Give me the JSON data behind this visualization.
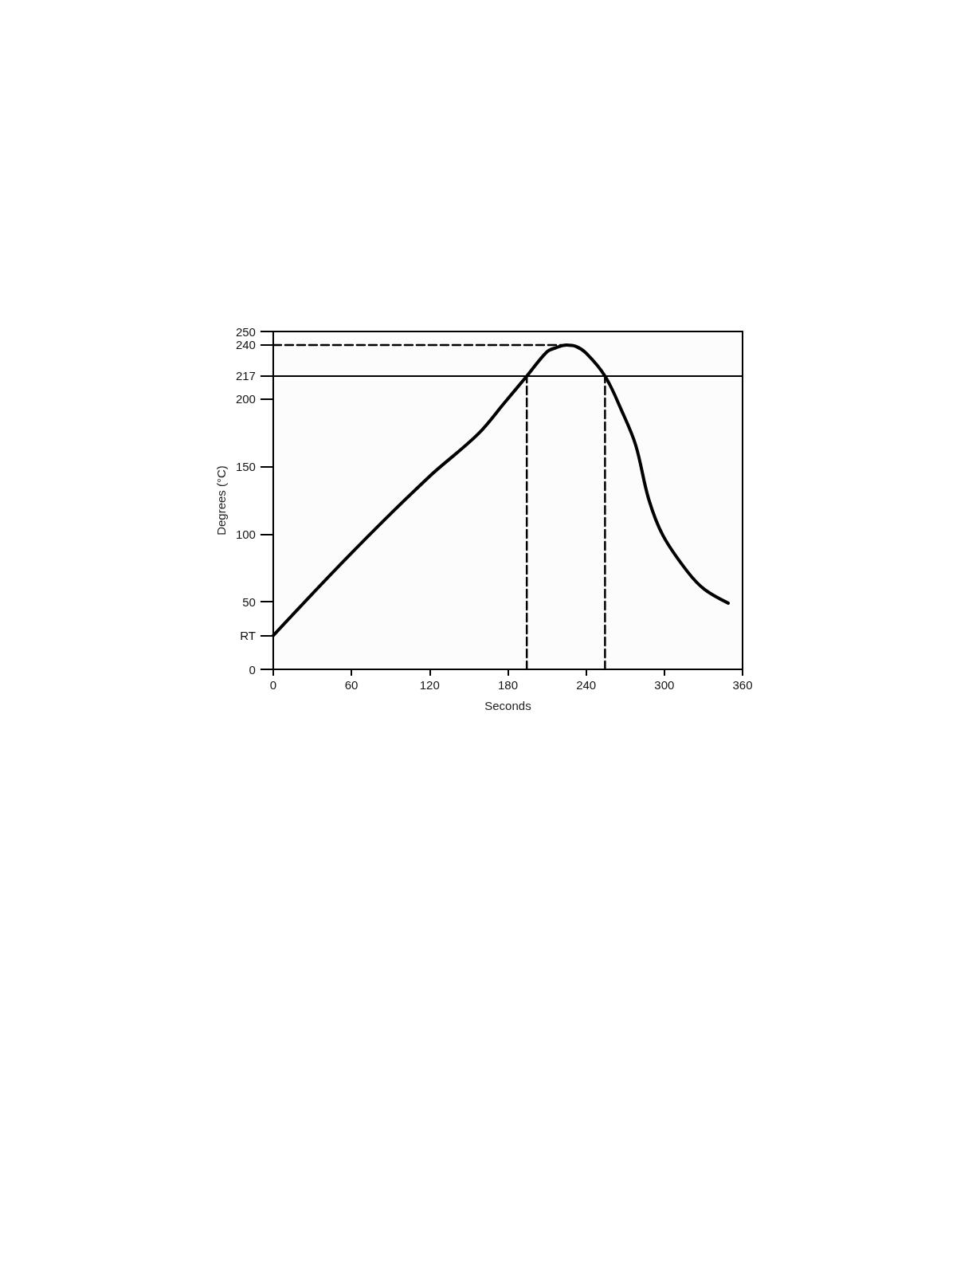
{
  "chart_data": {
    "type": "line",
    "xlabel": "Seconds",
    "ylabel": "Degrees (°C)",
    "xlim": [
      0,
      360
    ],
    "xticks": [
      0,
      60,
      120,
      180,
      240,
      300,
      360
    ],
    "ylim": [
      0,
      250
    ],
    "yticks": [
      0,
      {
        "value": 25,
        "label": "RT"
      },
      50,
      100,
      150,
      200,
      217,
      240,
      250
    ],
    "grid": false,
    "marker": "none",
    "series": [
      {
        "color": "#000000",
        "x": [
          0,
          60,
          119,
          157,
          178,
          194.5,
          210,
          217,
          225,
          232,
          240,
          254.5,
          267,
          278,
          288,
          299,
          318,
          331,
          349
        ],
        "values": [
          25,
          86,
          142,
          174,
          198,
          217,
          235,
          238,
          240,
          239,
          234,
          217,
          192,
          166,
          126,
          99,
          72,
          59,
          49
        ]
      },
      {
        "color": "#000000",
        "line_style": "dashed",
        "x": [
          0,
          225
        ],
        "values": [
          240,
          240
        ]
      },
      {
        "color": "#000000",
        "line_style": "dashed",
        "x": [
          194.5,
          194.5
        ],
        "values": [
          0,
          217
        ]
      },
      {
        "color": "#000000",
        "line_style": "dashed",
        "x": [
          254.5,
          254.5
        ],
        "values": [
          0,
          217
        ]
      }
    ],
    "ref_lines": [
      {
        "axis": "y",
        "value": 217,
        "color": "#000000",
        "line_style": "solid"
      }
    ]
  }
}
